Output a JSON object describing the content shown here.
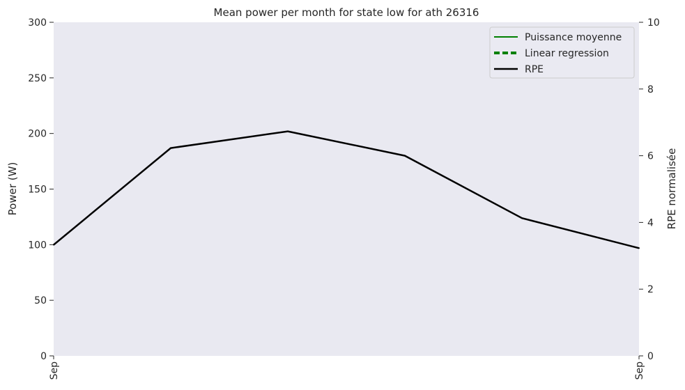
{
  "chart_data": {
    "type": "line",
    "title": "Mean power per month for state low for ath 26316",
    "ylabel": "Power (W)",
    "y2label": "RPE normalisée",
    "ylim": [
      0,
      300
    ],
    "y2lim": [
      0,
      10
    ],
    "yticks": [
      0,
      50,
      100,
      150,
      200,
      250,
      300
    ],
    "y2ticks": [
      0,
      2,
      4,
      6,
      8,
      10
    ],
    "xticklabels": [
      "Sep",
      "Sep"
    ],
    "grid": false,
    "legend_position": "top-right",
    "colors": {
      "background": "#e9e9f1",
      "puissance": "#008000",
      "regression": "#008000",
      "rpe": "#000000"
    },
    "series": [
      {
        "name": "Puissance moyenne",
        "axis": "left",
        "style": "solid",
        "values": []
      },
      {
        "name": "Linear regression",
        "axis": "left",
        "style": "dashed",
        "values": []
      },
      {
        "name": "RPE",
        "axis": "right",
        "style": "solid",
        "x": [
          0,
          1,
          2,
          3,
          4,
          5
        ],
        "values": [
          3.33,
          6.23,
          6.73,
          6.0,
          4.13,
          3.23
        ]
      }
    ]
  }
}
